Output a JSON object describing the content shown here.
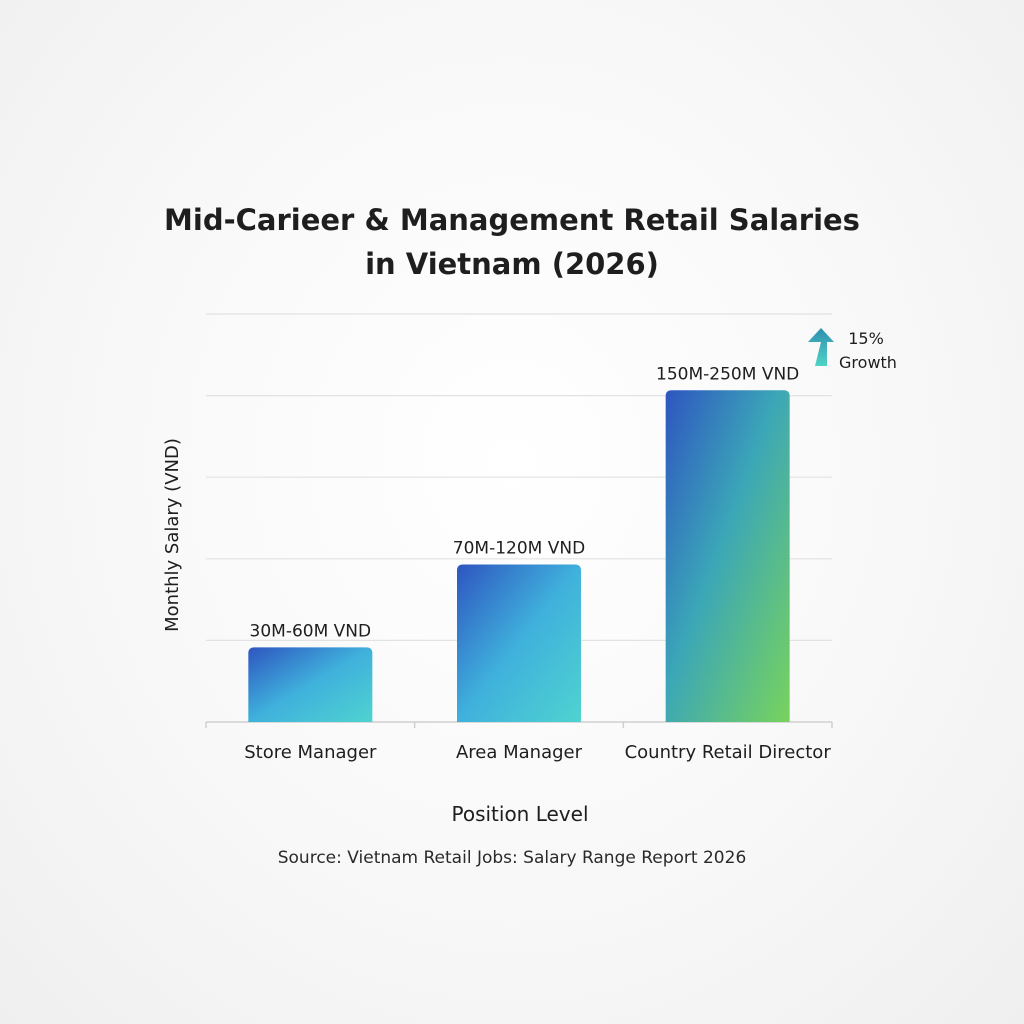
{
  "chart_data": {
    "type": "bar",
    "title_lines": [
      "Mid-Carieer & Management Retail Salaries",
      "in Vietnam (2026)"
    ],
    "xlabel": "Position Level",
    "ylabel": "Monthly Salary (VND)",
    "categories": [
      "Store Manager",
      "Area Manager",
      "Country Retail Director"
    ],
    "series": [
      {
        "values": [
          45,
          95,
          200
        ],
        "range_min": [
          30,
          70,
          150
        ],
        "range_max": [
          60,
          120,
          250
        ],
        "data_labels": [
          "30M-60M VND",
          "70M-120M VND",
          "150M-250M VND"
        ]
      }
    ],
    "value_unit": "M VND",
    "ylim": [
      0,
      246
    ],
    "grid": true,
    "annotation": {
      "arrow_icon": "up-arrow-icon",
      "line1": "15%",
      "line2": "Growth",
      "color": "#3aa9b8"
    },
    "colors": {
      "bar_top_left": "#2e55c0",
      "bar_mid": "#3fb1dc",
      "bar_bottom_right": "#4fd3d0",
      "bar_green_end": "#78d35c"
    },
    "source": "Source: Vietnam Retail Jobs: Salary Range Report 2026"
  }
}
